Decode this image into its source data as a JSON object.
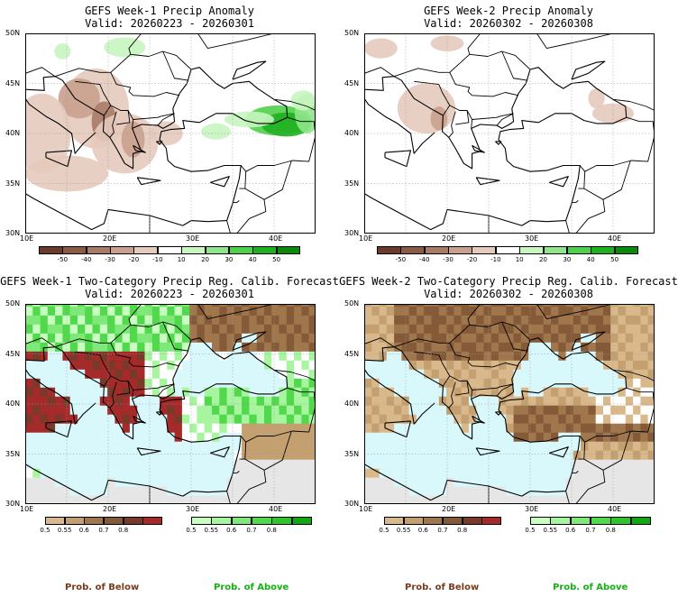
{
  "panels": [
    {
      "id": "w1a",
      "title": "GEFS Week-1 Precip Anomaly",
      "valid": "Valid: 20260223 - 20260301",
      "type": "anomaly"
    },
    {
      "id": "w2a",
      "title": "GEFS Week-2 Precip Anomaly",
      "valid": "Valid: 20260302 - 20260308",
      "type": "anomaly"
    },
    {
      "id": "w1c",
      "title": "GEFS Week-1 Two-Category Precip Reg. Calib. Forecast",
      "valid": "Valid: 20260223 - 20260301",
      "type": "category"
    },
    {
      "id": "w2c",
      "title": "GEFS Week-2 Two-Category Precip Reg. Calib. Forecast",
      "valid": "Valid: 20260302 - 20260308",
      "type": "category"
    }
  ],
  "lat_labels": [
    "50N",
    "45N",
    "40N",
    "35N",
    "30N"
  ],
  "lon_labels": [
    "10E",
    "20E",
    "30E",
    "40E"
  ],
  "anomaly_colorbar": {
    "ticks": [
      "-50",
      "-40",
      "-30",
      "-20",
      "-10",
      "10",
      "20",
      "30",
      "40",
      "50"
    ],
    "colors": [
      "#6b3a2a",
      "#8b5a45",
      "#a97a66",
      "#c9a08e",
      "#e6cabd",
      "#ffffff",
      "#c8f5c0",
      "#8fe68a",
      "#4fd04a",
      "#1fb01f",
      "#0a8a0a"
    ]
  },
  "below_colorbar": {
    "ticks": [
      "0.5",
      "0.55",
      "0.6",
      "0.7",
      "0.8"
    ],
    "colors": [
      "#d9b98b",
      "#c4a070",
      "#a0774d",
      "#855a38",
      "#7a3a2a",
      "#a52a2a"
    ]
  },
  "above_colorbar": {
    "ticks": [
      "0.5",
      "0.55",
      "0.6",
      "0.7",
      "0.8"
    ],
    "colors": [
      "#c8ffc0",
      "#a8f5a0",
      "#7ee878",
      "#52d84c",
      "#2ec42a",
      "#10a810"
    ]
  },
  "prob_labels": {
    "below": "Prob. of Below",
    "above": "Prob. of Above"
  },
  "colors": {
    "sea": "#d9f8fc",
    "land_bg": "#ffffff",
    "grey_land": "#e6e6e6",
    "below_text": "#7a3a1a",
    "above_text": "#14b014"
  }
}
